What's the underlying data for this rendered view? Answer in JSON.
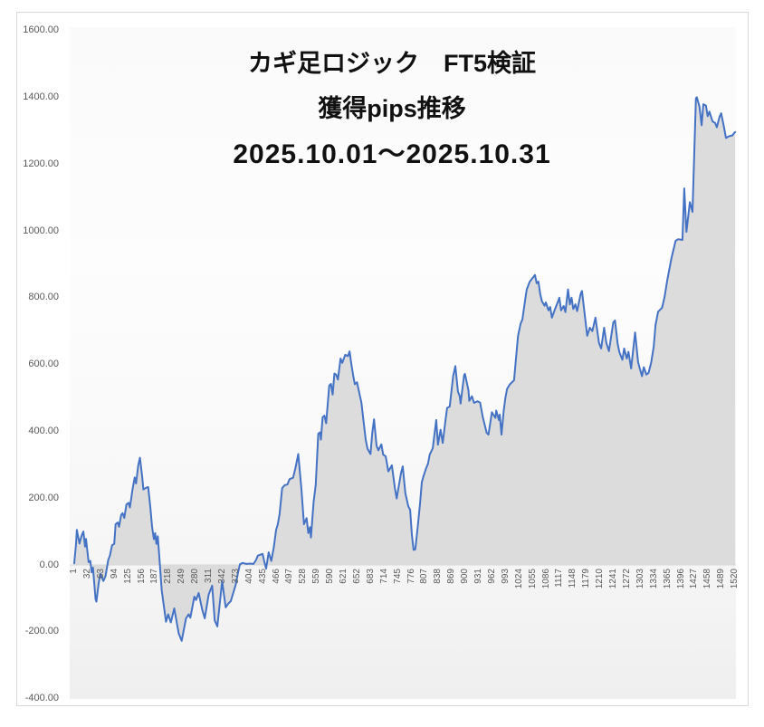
{
  "title": {
    "line1": "カギ足ロジック　FT5検証",
    "line2": "獲得pips推移",
    "line3": "2025.10.01～2025.10.31"
  },
  "chart_data": {
    "type": "area",
    "series_name": "獲得pips",
    "legend": "none",
    "grid": "off",
    "x_axis": {
      "range": [
        1,
        1520
      ],
      "tick_step": 31,
      "tick_labels": [
        "1",
        "32",
        "63",
        "94",
        "125",
        "156",
        "187",
        "218",
        "249",
        "280",
        "311",
        "342",
        "373",
        "404",
        "435",
        "466",
        "497",
        "528",
        "559",
        "590",
        "621",
        "652",
        "683",
        "714",
        "745",
        "776",
        "807",
        "838",
        "869",
        "900",
        "931",
        "962",
        "993",
        "1024",
        "1055",
        "1086",
        "1117",
        "1148",
        "1179",
        "1210",
        "1241",
        "1272",
        "1303",
        "1334",
        "1365",
        "1396",
        "1427",
        "1458",
        "1489",
        "1520"
      ]
    },
    "y_axis": {
      "min": -400,
      "max": 1600,
      "tick_step": 200,
      "tick_labels": [
        "1600.00",
        "1400.00",
        "1200.00",
        "1000.00",
        "800.00",
        "600.00",
        "400.00",
        "200.00",
        "0.00",
        "-200.00",
        "-400.00"
      ]
    },
    "colors": {
      "line": "#4472c4",
      "fill": "#d9d9d9",
      "axis_text": "#595959",
      "axis_line": "#d9d9d9",
      "frame_border": "#d9d9d9",
      "title_text": "#111111"
    },
    "points": [
      [
        1,
        5
      ],
      [
        5,
        60
      ],
      [
        7,
        105
      ],
      [
        13,
        64
      ],
      [
        18,
        88
      ],
      [
        22,
        100
      ],
      [
        26,
        55
      ],
      [
        28,
        78
      ],
      [
        34,
        8
      ],
      [
        38,
        12
      ],
      [
        41,
        -22
      ],
      [
        44,
        -8
      ],
      [
        50,
        -103
      ],
      [
        52,
        -110
      ],
      [
        57,
        -57
      ],
      [
        61,
        -26
      ],
      [
        68,
        -48
      ],
      [
        73,
        -33
      ],
      [
        79,
        14
      ],
      [
        83,
        28
      ],
      [
        88,
        59
      ],
      [
        93,
        63
      ],
      [
        96,
        122
      ],
      [
        101,
        127
      ],
      [
        104,
        114
      ],
      [
        109,
        150
      ],
      [
        112,
        155
      ],
      [
        116,
        141
      ],
      [
        121,
        181
      ],
      [
        126,
        186
      ],
      [
        129,
        172
      ],
      [
        135,
        226
      ],
      [
        140,
        262
      ],
      [
        143,
        244
      ],
      [
        148,
        298
      ],
      [
        152,
        321
      ],
      [
        157,
        266
      ],
      [
        160,
        226
      ],
      [
        166,
        231
      ],
      [
        171,
        233
      ],
      [
        176,
        172
      ],
      [
        180,
        114
      ],
      [
        184,
        77
      ],
      [
        187,
        95
      ],
      [
        190,
        63
      ],
      [
        193,
        86
      ],
      [
        197,
        17
      ],
      [
        202,
        -75
      ],
      [
        212,
        -170
      ],
      [
        217,
        -148
      ],
      [
        223,
        -172
      ],
      [
        231,
        -130
      ],
      [
        241,
        -205
      ],
      [
        248,
        -227
      ],
      [
        258,
        -160
      ],
      [
        264,
        -148
      ],
      [
        268,
        -158
      ],
      [
        277,
        -95
      ],
      [
        281,
        -105
      ],
      [
        287,
        -84
      ],
      [
        295,
        -133
      ],
      [
        301,
        -160
      ],
      [
        310,
        -89
      ],
      [
        318,
        -62
      ],
      [
        324,
        -166
      ],
      [
        330,
        -184
      ],
      [
        341,
        -49
      ],
      [
        349,
        -127
      ],
      [
        355,
        -116
      ],
      [
        361,
        -108
      ],
      [
        372,
        -60
      ],
      [
        378,
        -20
      ],
      [
        382,
        2
      ],
      [
        388,
        6
      ],
      [
        397,
        3
      ],
      [
        405,
        4
      ],
      [
        413,
        3
      ],
      [
        419,
        15
      ],
      [
        423,
        28
      ],
      [
        434,
        33
      ],
      [
        438,
        10
      ],
      [
        442,
        -11
      ],
      [
        448,
        38
      ],
      [
        454,
        12
      ],
      [
        460,
        55
      ],
      [
        465,
        105
      ],
      [
        469,
        122
      ],
      [
        473,
        153
      ],
      [
        479,
        230
      ],
      [
        485,
        239
      ],
      [
        491,
        241
      ],
      [
        496,
        257
      ],
      [
        504,
        261
      ],
      [
        510,
        293
      ],
      [
        516,
        332
      ],
      [
        523,
        230
      ],
      [
        529,
        122
      ],
      [
        535,
        140
      ],
      [
        539,
        95
      ],
      [
        543,
        113
      ],
      [
        545,
        82
      ],
      [
        551,
        187
      ],
      [
        556,
        240
      ],
      [
        558,
        290
      ],
      [
        562,
        393
      ],
      [
        566,
        397
      ],
      [
        568,
        375
      ],
      [
        572,
        442
      ],
      [
        576,
        447
      ],
      [
        580,
        424
      ],
      [
        587,
        537
      ],
      [
        591,
        542
      ],
      [
        595,
        510
      ],
      [
        599,
        573
      ],
      [
        603,
        570
      ],
      [
        607,
        555
      ],
      [
        613,
        618
      ],
      [
        617,
        605
      ],
      [
        624,
        629
      ],
      [
        630,
        625
      ],
      [
        634,
        639
      ],
      [
        638,
        600
      ],
      [
        642,
        568
      ],
      [
        646,
        541
      ],
      [
        651,
        547
      ],
      [
        657,
        510
      ],
      [
        661,
        487
      ],
      [
        665,
        442
      ],
      [
        671,
        375
      ],
      [
        675,
        348
      ],
      [
        682,
        332
      ],
      [
        686,
        394
      ],
      [
        690,
        436
      ],
      [
        696,
        357
      ],
      [
        700,
        343
      ],
      [
        707,
        361
      ],
      [
        711,
        330
      ],
      [
        717,
        325
      ],
      [
        723,
        280
      ],
      [
        731,
        298
      ],
      [
        738,
        231
      ],
      [
        742,
        199
      ],
      [
        752,
        275
      ],
      [
        756,
        295
      ],
      [
        762,
        215
      ],
      [
        769,
        175
      ],
      [
        773,
        165
      ],
      [
        777,
        90
      ],
      [
        781,
        45
      ],
      [
        785,
        47
      ],
      [
        791,
        120
      ],
      [
        796,
        186
      ],
      [
        800,
        248
      ],
      [
        804,
        267
      ],
      [
        810,
        290
      ],
      [
        814,
        303
      ],
      [
        818,
        330
      ],
      [
        825,
        350
      ],
      [
        833,
        434
      ],
      [
        837,
        360
      ],
      [
        843,
        405
      ],
      [
        848,
        365
      ],
      [
        854,
        430
      ],
      [
        858,
        470
      ],
      [
        864,
        474
      ],
      [
        872,
        565
      ],
      [
        877,
        595
      ],
      [
        883,
        519
      ],
      [
        887,
        505
      ],
      [
        889,
        483
      ],
      [
        897,
        568
      ],
      [
        899,
        572
      ],
      [
        907,
        523
      ],
      [
        909,
        491
      ],
      [
        915,
        505
      ],
      [
        920,
        485
      ],
      [
        928,
        490
      ],
      [
        934,
        486
      ],
      [
        940,
        443
      ],
      [
        949,
        395
      ],
      [
        953,
        390
      ],
      [
        961,
        457
      ],
      [
        969,
        440
      ],
      [
        971,
        462
      ],
      [
        977,
        434
      ],
      [
        979,
        450
      ],
      [
        983,
        390
      ],
      [
        988,
        460
      ],
      [
        992,
        500
      ],
      [
        996,
        527
      ],
      [
        1002,
        540
      ],
      [
        1008,
        548
      ],
      [
        1012,
        553
      ],
      [
        1017,
        627
      ],
      [
        1021,
        686
      ],
      [
        1027,
        722
      ],
      [
        1031,
        735
      ],
      [
        1037,
        789
      ],
      [
        1041,
        825
      ],
      [
        1048,
        848
      ],
      [
        1054,
        858
      ],
      [
        1060,
        868
      ],
      [
        1064,
        843
      ],
      [
        1068,
        848
      ],
      [
        1072,
        811
      ],
      [
        1076,
        789
      ],
      [
        1082,
        776
      ],
      [
        1085,
        786
      ],
      [
        1091,
        762
      ],
      [
        1095,
        772
      ],
      [
        1099,
        740
      ],
      [
        1105,
        762
      ],
      [
        1113,
        789
      ],
      [
        1116,
        800
      ],
      [
        1120,
        762
      ],
      [
        1126,
        775
      ],
      [
        1130,
        757
      ],
      [
        1136,
        825
      ],
      [
        1140,
        780
      ],
      [
        1144,
        800
      ],
      [
        1148,
        766
      ],
      [
        1153,
        780
      ],
      [
        1157,
        760
      ],
      [
        1165,
        812
      ],
      [
        1168,
        820
      ],
      [
        1176,
        730
      ],
      [
        1180,
        686
      ],
      [
        1186,
        710
      ],
      [
        1192,
        700
      ],
      [
        1199,
        740
      ],
      [
        1207,
        665
      ],
      [
        1212,
        648
      ],
      [
        1219,
        710
      ],
      [
        1224,
        665
      ],
      [
        1230,
        640
      ],
      [
        1240,
        726
      ],
      [
        1244,
        732
      ],
      [
        1250,
        663
      ],
      [
        1254,
        637
      ],
      [
        1261,
        614
      ],
      [
        1265,
        648
      ],
      [
        1271,
        618
      ],
      [
        1275,
        638
      ],
      [
        1281,
        588
      ],
      [
        1290,
        696
      ],
      [
        1297,
        607
      ],
      [
        1300,
        592
      ],
      [
        1306,
        565
      ],
      [
        1310,
        592
      ],
      [
        1316,
        570
      ],
      [
        1321,
        575
      ],
      [
        1327,
        605
      ],
      [
        1333,
        654
      ],
      [
        1337,
        717
      ],
      [
        1343,
        758
      ],
      [
        1352,
        770
      ],
      [
        1358,
        803
      ],
      [
        1364,
        852
      ],
      [
        1374,
        920
      ],
      [
        1383,
        970
      ],
      [
        1389,
        975
      ],
      [
        1399,
        973
      ],
      [
        1403,
        1127
      ],
      [
        1408,
        997
      ],
      [
        1416,
        1086
      ],
      [
        1422,
        1057
      ],
      [
        1430,
        1397
      ],
      [
        1432,
        1400
      ],
      [
        1438,
        1372
      ],
      [
        1443,
        1316
      ],
      [
        1447,
        1379
      ],
      [
        1453,
        1375
      ],
      [
        1457,
        1343
      ],
      [
        1461,
        1357
      ],
      [
        1468,
        1328
      ],
      [
        1474,
        1323
      ],
      [
        1478,
        1310
      ],
      [
        1484,
        1341
      ],
      [
        1488,
        1352
      ],
      [
        1494,
        1313
      ],
      [
        1499,
        1278
      ],
      [
        1507,
        1284
      ],
      [
        1513,
        1285
      ],
      [
        1520,
        1296
      ]
    ]
  }
}
